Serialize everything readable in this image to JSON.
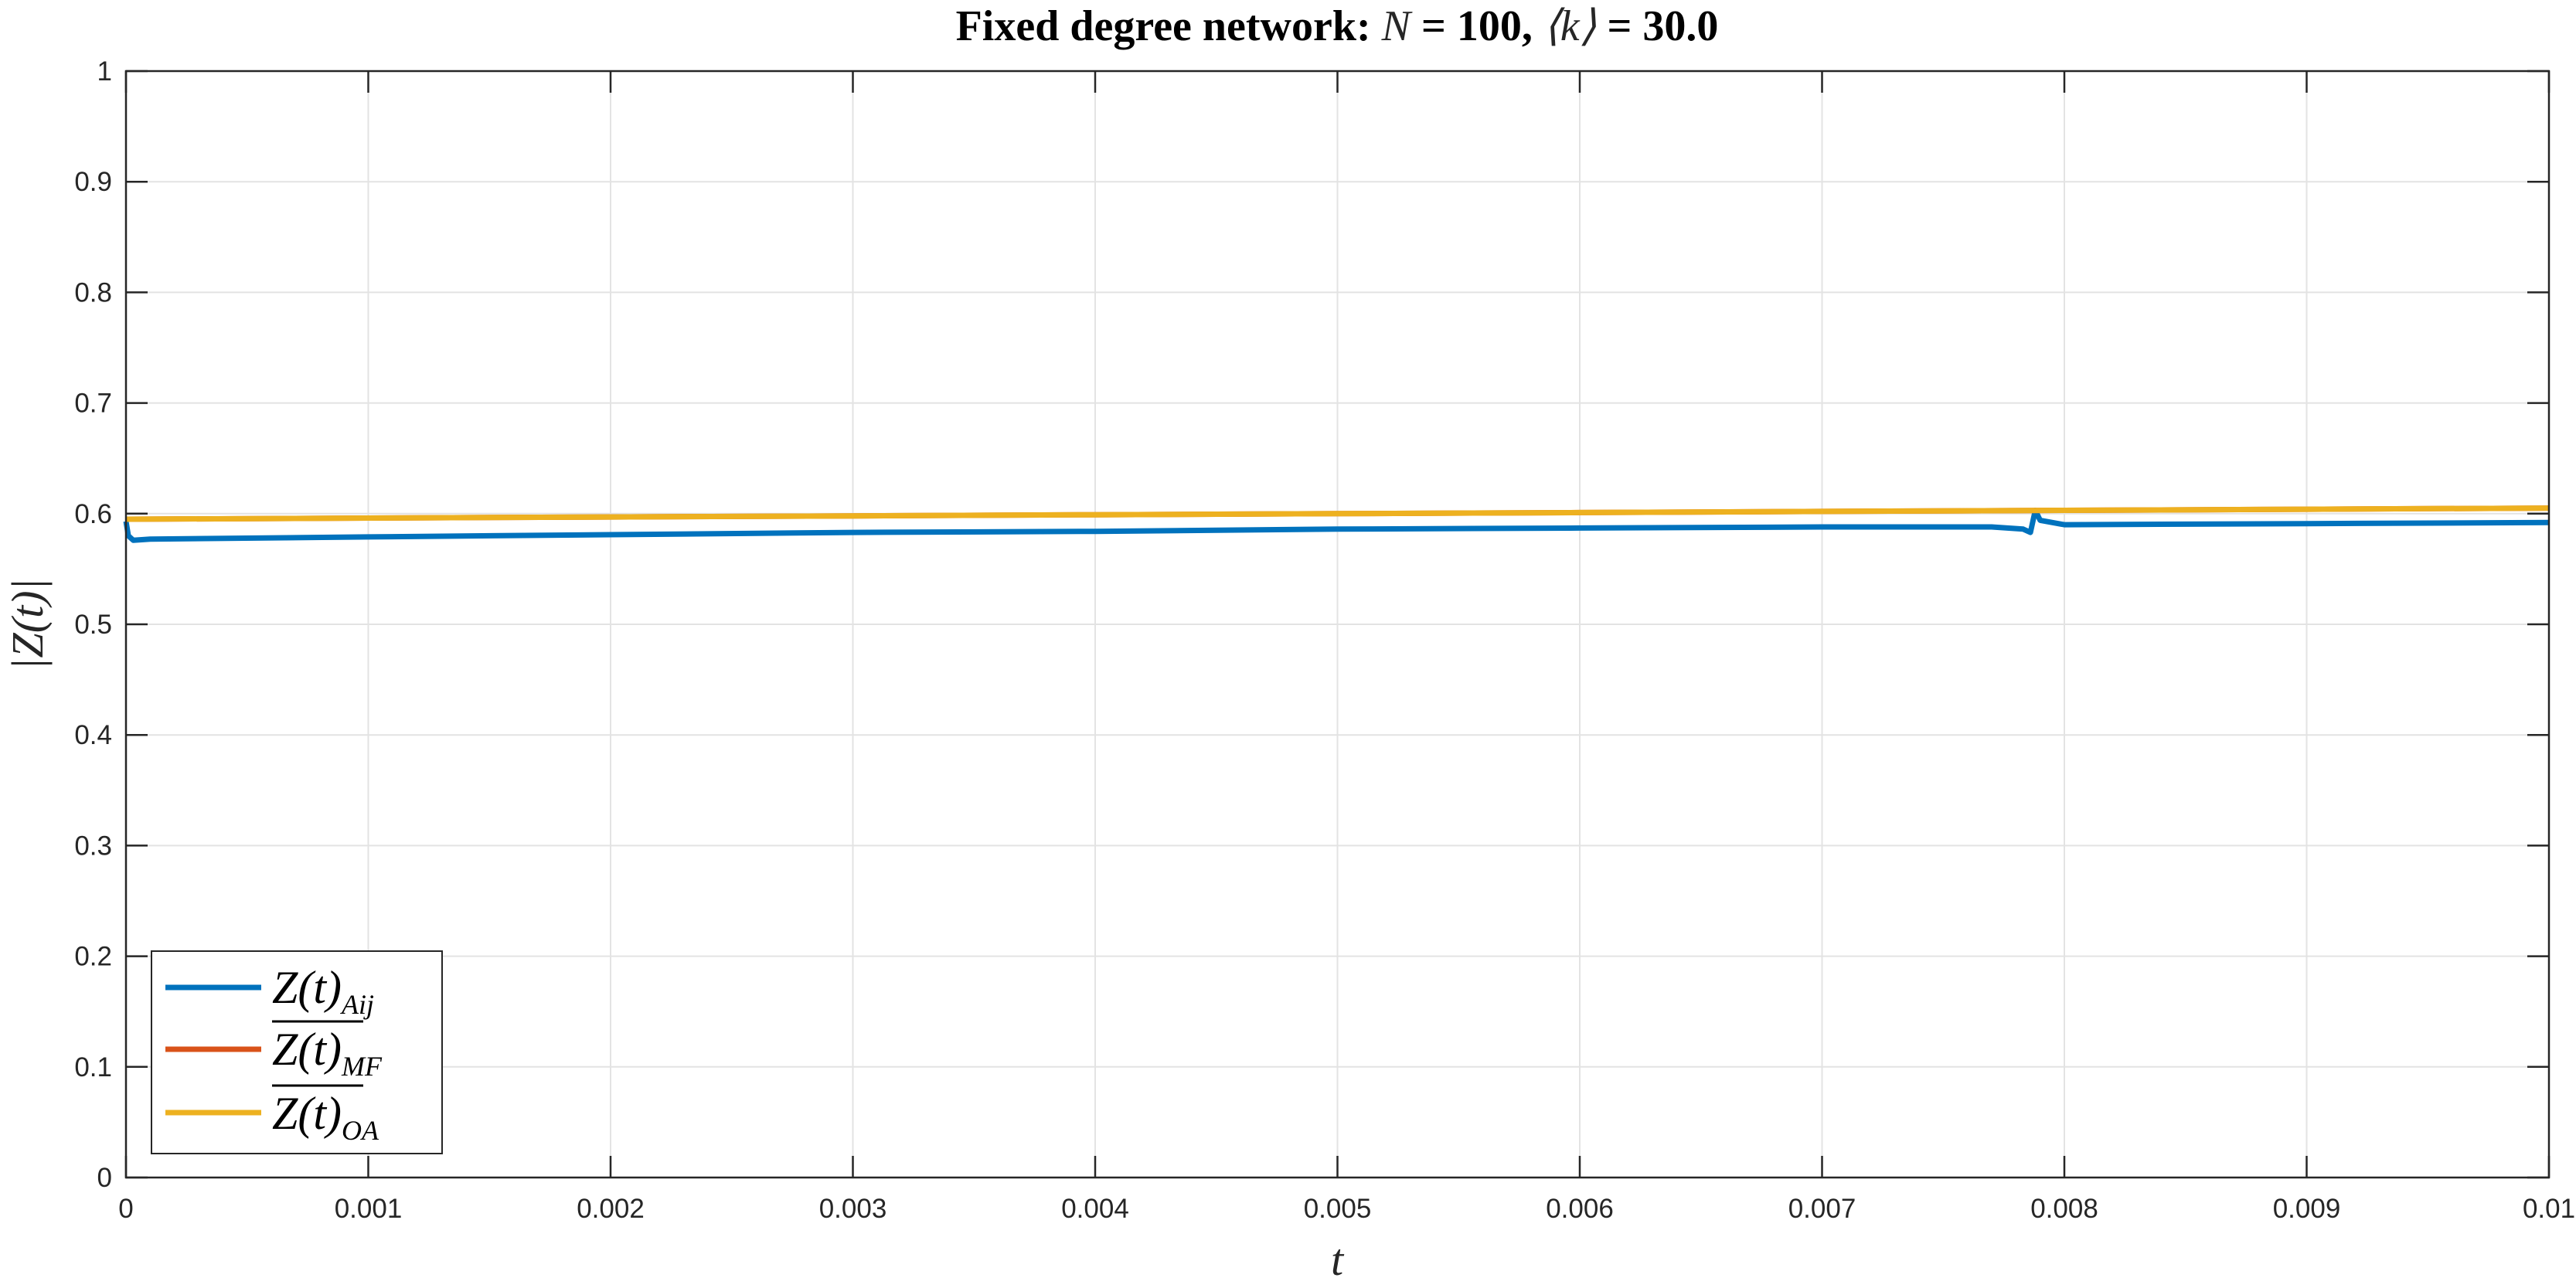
{
  "chart_data": {
    "type": "line",
    "title": "Fixed degree network: N = 100, ⟨k⟩ = 30.0",
    "title_parts": {
      "prefix": "Fixed degree network: ",
      "n": "N",
      "eq1": " = 100, ",
      "k": "⟨k⟩",
      "eq2": " = 30.0"
    },
    "xlabel": "t",
    "ylabel": "|Z(t)|",
    "xlim": [
      0,
      0.01
    ],
    "ylim": [
      0,
      1
    ],
    "xticks": [
      0,
      0.001,
      0.002,
      0.003,
      0.004,
      0.005,
      0.006,
      0.007,
      0.008,
      0.009,
      0.01
    ],
    "xtick_labels": [
      "0",
      "0.001",
      "0.002",
      "0.003",
      "0.004",
      "0.005",
      "0.006",
      "0.007",
      "0.008",
      "0.009",
      "0.01"
    ],
    "yticks": [
      0,
      0.1,
      0.2,
      0.3,
      0.4,
      0.5,
      0.6,
      0.7,
      0.8,
      0.9,
      1
    ],
    "ytick_labels": [
      "0",
      "0.1",
      "0.2",
      "0.3",
      "0.4",
      "0.5",
      "0.6",
      "0.7",
      "0.8",
      "0.9",
      "1"
    ],
    "grid": true,
    "legend_position": "bottom-left",
    "series": [
      {
        "name": "Z(t)_Aij",
        "legend_main": "Z(t)",
        "legend_sub": "Aij",
        "overline": false,
        "color": "#0072BD",
        "x": [
          0,
          1e-05,
          3e-05,
          0.0001,
          0.001,
          0.002,
          0.003,
          0.004,
          0.005,
          0.006,
          0.007,
          0.0077,
          0.00783,
          0.00786,
          0.00788,
          0.0079,
          0.008,
          0.009,
          0.01
        ],
        "y": [
          0.593,
          0.58,
          0.576,
          0.577,
          0.579,
          0.581,
          0.583,
          0.584,
          0.586,
          0.587,
          0.588,
          0.588,
          0.586,
          0.583,
          0.603,
          0.594,
          0.59,
          0.591,
          0.592
        ]
      },
      {
        "name": "Z(t)_MF",
        "legend_main": "Z(t)",
        "legend_sub": "MF",
        "overline": true,
        "color": "#D95319",
        "x": [
          0,
          0.001,
          0.002,
          0.003,
          0.004,
          0.005,
          0.006,
          0.007,
          0.008,
          0.009,
          0.01
        ],
        "y": [
          0.595,
          0.596,
          0.597,
          0.598,
          0.599,
          0.6,
          0.601,
          0.602,
          0.603,
          0.604,
          0.605
        ]
      },
      {
        "name": "Z(t)_OA",
        "legend_main": "Z(t)",
        "legend_sub": "OA",
        "overline": true,
        "color": "#EDB120",
        "x": [
          0,
          0.001,
          0.002,
          0.003,
          0.004,
          0.005,
          0.006,
          0.007,
          0.008,
          0.009,
          0.01
        ],
        "y": [
          0.595,
          0.596,
          0.597,
          0.598,
          0.599,
          0.6,
          0.601,
          0.602,
          0.603,
          0.604,
          0.605
        ]
      }
    ]
  }
}
